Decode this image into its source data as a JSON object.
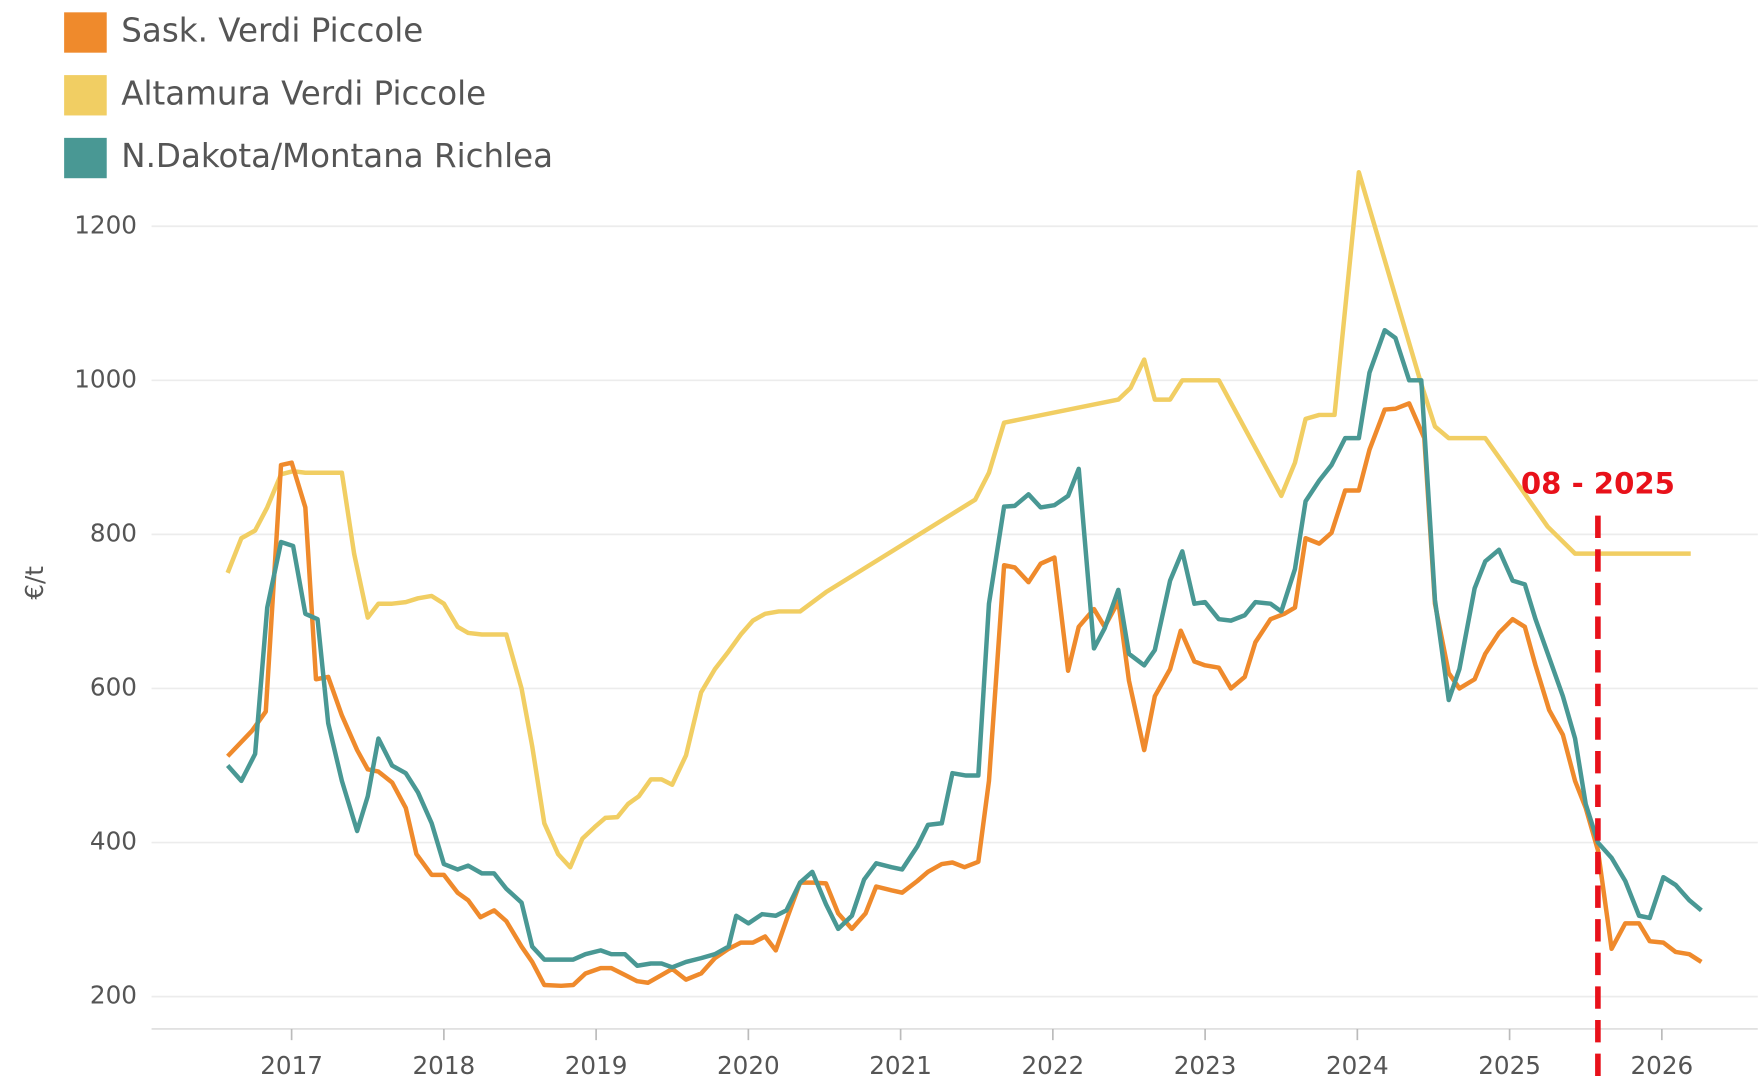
{
  "chart_data": {
    "type": "line",
    "ylabel": "€/t",
    "xlim": [
      2016.08,
      2026.63
    ],
    "xticks": [
      2017,
      2018,
      2019,
      2020,
      2021,
      2022,
      2023,
      2024,
      2025,
      2026
    ],
    "ylim": [
      158,
      1290
    ],
    "yticks": [
      200,
      400,
      600,
      800,
      1000,
      1200
    ],
    "grid": true,
    "legend": "top-left",
    "annotation": {
      "text": "08 - 2025",
      "x": 2025.58,
      "color": "#e8111a"
    },
    "series": [
      {
        "name": "Sask. Verdi Piccole",
        "color": "#ef8a2c",
        "x": [
          2016.58,
          2016.74,
          2016.83,
          2016.93,
          2017.0,
          2017.09,
          2017.16,
          2017.24,
          2017.33,
          2017.43,
          2017.5,
          2017.57,
          2017.66,
          2017.75,
          2017.82,
          2017.92,
          2018.0,
          2018.09,
          2018.16,
          2018.24,
          2018.33,
          2018.41,
          2018.51,
          2018.58,
          2018.66,
          2018.77,
          2018.85,
          2018.93,
          2019.03,
          2019.1,
          2019.19,
          2019.27,
          2019.34,
          2019.43,
          2019.5,
          2019.59,
          2019.69,
          2019.78,
          2019.87,
          2019.95,
          2020.03,
          2020.11,
          2020.18,
          2020.26,
          2020.34,
          2020.42,
          2020.51,
          2020.59,
          2020.68,
          2020.77,
          2020.84,
          2020.94,
          2021.01,
          2021.11,
          2021.18,
          2021.27,
          2021.34,
          2021.42,
          2021.51,
          2021.58,
          2021.68,
          2021.75,
          2021.84,
          2021.92,
          2022.01,
          2022.1,
          2022.17,
          2022.27,
          2022.34,
          2022.43,
          2022.5,
          2022.6,
          2022.67,
          2022.77,
          2022.84,
          2022.93,
          2023.0,
          2023.09,
          2023.17,
          2023.26,
          2023.33,
          2023.43,
          2023.52,
          2023.59,
          2023.66,
          2023.75,
          2023.83,
          2023.92,
          2024.01,
          2024.08,
          2024.18,
          2024.25,
          2024.34,
          2024.44,
          2024.51,
          2024.6,
          2024.67,
          2024.77,
          2024.84,
          2024.93,
          2025.02,
          2025.1,
          2025.17,
          2025.26,
          2025.35,
          2025.43,
          2025.5,
          2025.58,
          2025.67,
          2025.76,
          2025.85,
          2025.92,
          2026.01,
          2026.09,
          2026.18,
          2026.26
        ],
        "values": [
          512,
          545,
          570,
          890,
          893,
          835,
          612,
          615,
          565,
          520,
          495,
          492,
          478,
          445,
          385,
          358,
          358,
          335,
          325,
          303,
          312,
          298,
          265,
          245,
          215,
          214,
          215,
          230,
          237,
          237,
          228,
          220,
          218,
          228,
          236,
          222,
          230,
          250,
          262,
          270,
          270,
          278,
          260,
          305,
          348,
          348,
          347,
          308,
          288,
          308,
          343,
          338,
          335,
          350,
          362,
          372,
          374,
          368,
          375,
          480,
          760,
          757,
          738,
          762,
          770,
          623,
          680,
          703,
          680,
          713,
          610,
          520,
          590,
          625,
          675,
          635,
          630,
          627,
          600,
          615,
          660,
          690,
          697,
          705,
          795,
          788,
          802,
          857,
          857,
          910,
          962,
          963,
          970,
          925,
          710,
          620,
          600,
          612,
          645,
          672,
          690,
          680,
          630,
          572,
          540,
          480,
          445,
          390,
          262,
          295,
          295,
          272,
          270,
          258,
          255,
          245
        ]
      },
      {
        "name": "Altamura Verdi Piccole",
        "color": "#f1ce63",
        "x": [
          2016.58,
          2016.67,
          2016.76,
          2016.84,
          2016.93,
          2017.01,
          2017.09,
          2017.17,
          2017.33,
          2017.41,
          2017.5,
          2017.57,
          2017.66,
          2017.75,
          2017.83,
          2017.92,
          2018.0,
          2018.09,
          2018.16,
          2018.25,
          2018.41,
          2018.51,
          2018.58,
          2018.66,
          2018.75,
          2018.83,
          2018.91,
          2018.99,
          2019.06,
          2019.14,
          2019.21,
          2019.28,
          2019.36,
          2019.43,
          2019.5,
          2019.59,
          2019.69,
          2019.78,
          2019.87,
          2019.95,
          2020.03,
          2020.11,
          2020.2,
          2020.34,
          2020.51,
          2021.49,
          2021.58,
          2021.68,
          2022.43,
          2022.51,
          2022.6,
          2022.67,
          2022.77,
          2022.85,
          2023.09,
          2023.5,
          2023.59,
          2023.66,
          2023.75,
          2023.85,
          2024.01,
          2024.42,
          2024.51,
          2024.6,
          2024.84,
          2024.93,
          2025.02,
          2025.25,
          2025.43,
          2026.19
        ],
        "values": [
          750,
          795,
          805,
          835,
          878,
          882,
          880,
          880,
          880,
          775,
          692,
          710,
          710,
          712,
          717,
          720,
          710,
          680,
          672,
          670,
          670,
          600,
          525,
          425,
          385,
          368,
          405,
          420,
          432,
          433,
          450,
          460,
          482,
          482,
          475,
          513,
          595,
          625,
          648,
          670,
          688,
          697,
          700,
          700,
          725,
          845,
          880,
          945,
          975,
          990,
          1027,
          975,
          975,
          1000,
          1000,
          850,
          893,
          950,
          955,
          955,
          1270,
          995,
          940,
          925,
          925,
          900,
          875,
          810,
          775,
          775
        ]
      },
      {
        "name": "N.Dakota/Montana Richlea",
        "color": "#499894",
        "x": [
          2016.58,
          2016.67,
          2016.76,
          2016.84,
          2016.93,
          2017.01,
          2017.09,
          2017.17,
          2017.24,
          2017.33,
          2017.43,
          2017.5,
          2017.57,
          2017.66,
          2017.75,
          2017.83,
          2017.92,
          2018.0,
          2018.09,
          2018.16,
          2018.25,
          2018.33,
          2018.41,
          2018.51,
          2018.58,
          2018.66,
          2018.75,
          2018.85,
          2018.93,
          2019.03,
          2019.1,
          2019.19,
          2019.27,
          2019.36,
          2019.43,
          2019.5,
          2019.59,
          2019.69,
          2019.78,
          2019.87,
          2019.92,
          2020.0,
          2020.09,
          2020.18,
          2020.25,
          2020.34,
          2020.42,
          2020.51,
          2020.59,
          2020.68,
          2020.76,
          2020.84,
          2020.94,
          2021.01,
          2021.11,
          2021.18,
          2021.27,
          2021.34,
          2021.43,
          2021.51,
          2021.58,
          2021.68,
          2021.75,
          2021.84,
          2021.92,
          2022.01,
          2022.1,
          2022.17,
          2022.27,
          2022.34,
          2022.43,
          2022.5,
          2022.6,
          2022.67,
          2022.77,
          2022.85,
          2022.93,
          2023.0,
          2023.09,
          2023.17,
          2023.26,
          2023.33,
          2023.43,
          2023.5,
          2023.59,
          2023.66,
          2023.75,
          2023.83,
          2023.92,
          2024.01,
          2024.08,
          2024.18,
          2024.25,
          2024.34,
          2024.42,
          2024.51,
          2024.6,
          2024.67,
          2024.77,
          2024.84,
          2024.93,
          2025.02,
          2025.1,
          2025.17,
          2025.26,
          2025.35,
          2025.43,
          2025.5,
          2025.58,
          2025.67,
          2025.76,
          2025.85,
          2025.92,
          2026.01,
          2026.09,
          2026.18,
          2026.26
        ],
        "values": [
          500,
          480,
          515,
          705,
          790,
          785,
          697,
          690,
          555,
          480,
          415,
          460,
          535,
          500,
          490,
          465,
          425,
          372,
          365,
          370,
          360,
          360,
          340,
          322,
          265,
          248,
          248,
          248,
          255,
          260,
          255,
          255,
          240,
          243,
          243,
          238,
          245,
          250,
          255,
          265,
          305,
          295,
          307,
          305,
          312,
          348,
          362,
          320,
          288,
          305,
          352,
          373,
          368,
          365,
          395,
          423,
          425,
          490,
          487,
          487,
          710,
          836,
          837,
          852,
          835,
          838,
          850,
          885,
          652,
          678,
          728,
          645,
          630,
          650,
          740,
          778,
          710,
          712,
          690,
          688,
          695,
          712,
          710,
          700,
          755,
          843,
          870,
          890,
          925,
          925,
          1010,
          1065,
          1055,
          1000,
          1000,
          715,
          585,
          625,
          730,
          765,
          780,
          740,
          735,
          690,
          640,
          590,
          535,
          450,
          400,
          380,
          350,
          305,
          302,
          355,
          345,
          325,
          312
        ]
      }
    ]
  }
}
